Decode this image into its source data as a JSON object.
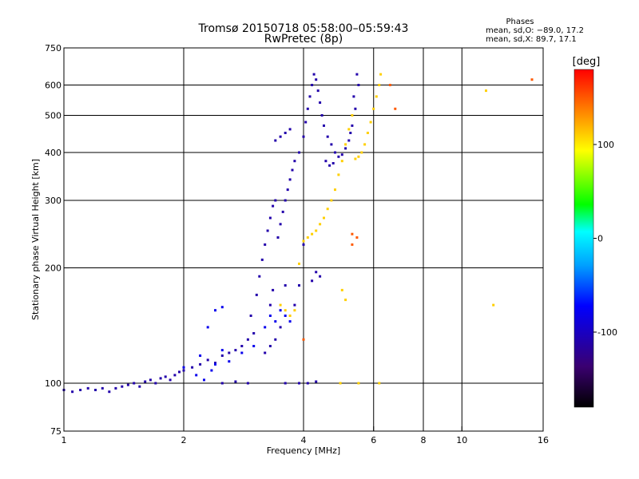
{
  "header": {
    "title": "Tromsø 20150718 05:58:00–05:59:43",
    "subtitle": "RwPretec (8p)"
  },
  "phases_box": {
    "heading": "Phases",
    "o_mode": "mean, sd,O: −89.0, 17.2",
    "x_mode": "mean, sd,X:  89.7, 17.1"
  },
  "colors": {
    "grid": "#000000",
    "colorbar_stops": [
      "#000000",
      "#3a0070",
      "#0000ff",
      "#00a0ff",
      "#00ffff",
      "#00ff00",
      "#ffff00",
      "#ff8000",
      "#ff0000"
    ]
  },
  "chart_data": {
    "type": "scatter",
    "title": "Tromsø 20150718 05:58:00–05:59:43",
    "subtitle": "RwPretec (8p)",
    "xlabel": "Frequency [MHz]",
    "ylabel": "Stationary phase Virtual Height [km]",
    "x_scale": "log",
    "y_scale": "log",
    "xlim": [
      1,
      16
    ],
    "ylim": [
      75,
      750
    ],
    "x_ticks": [
      1,
      2,
      4,
      6,
      8,
      10,
      16
    ],
    "x_tick_labels": [
      "1",
      "2",
      "4",
      "6",
      "8",
      "10",
      "16"
    ],
    "y_ticks": [
      75,
      100,
      200,
      300,
      400,
      500,
      600,
      750
    ],
    "y_tick_labels": [
      "75",
      "100",
      "200",
      "300",
      "400",
      "500",
      "600",
      "750"
    ],
    "grid": true,
    "colorbar": {
      "label": "[deg]",
      "range": [
        -180,
        180
      ],
      "ticks": [
        -100,
        0,
        100
      ],
      "tick_labels": [
        "-100",
        "0",
        "100"
      ]
    },
    "series": [
      {
        "color_value": -110,
        "points": [
          [
            1.0,
            96
          ],
          [
            1.05,
            95
          ],
          [
            1.1,
            96
          ],
          [
            1.15,
            97
          ],
          [
            1.2,
            96
          ],
          [
            1.25,
            97
          ],
          [
            1.3,
            95
          ],
          [
            1.35,
            97
          ],
          [
            1.4,
            98
          ],
          [
            1.45,
            99
          ],
          [
            1.5,
            100
          ],
          [
            1.55,
            98
          ],
          [
            1.6,
            101
          ],
          [
            1.65,
            102
          ],
          [
            1.7,
            100
          ],
          [
            1.75,
            103
          ],
          [
            1.8,
            104
          ],
          [
            1.85,
            102
          ],
          [
            1.9,
            105
          ],
          [
            1.95,
            107
          ],
          [
            2.0,
            108
          ],
          [
            2.1,
            110
          ],
          [
            2.2,
            112
          ],
          [
            2.3,
            115
          ],
          [
            2.4,
            113
          ],
          [
            2.5,
            118
          ],
          [
            2.6,
            120
          ],
          [
            2.7,
            122
          ],
          [
            2.8,
            125
          ],
          [
            2.9,
            130
          ],
          [
            3.0,
            135
          ],
          [
            2.95,
            150
          ],
          [
            3.05,
            170
          ],
          [
            3.1,
            190
          ],
          [
            3.15,
            210
          ],
          [
            3.2,
            230
          ],
          [
            3.25,
            250
          ],
          [
            3.3,
            270
          ],
          [
            3.35,
            290
          ],
          [
            3.4,
            300
          ],
          [
            3.45,
            240
          ],
          [
            3.5,
            260
          ],
          [
            3.55,
            280
          ],
          [
            3.6,
            300
          ],
          [
            3.65,
            320
          ],
          [
            3.7,
            340
          ],
          [
            3.75,
            360
          ],
          [
            3.8,
            380
          ],
          [
            3.9,
            400
          ],
          [
            4.0,
            440
          ],
          [
            4.05,
            480
          ],
          [
            4.1,
            520
          ],
          [
            4.15,
            560
          ],
          [
            4.2,
            600
          ],
          [
            4.25,
            640
          ],
          [
            4.3,
            620
          ],
          [
            4.35,
            580
          ],
          [
            4.4,
            540
          ],
          [
            4.45,
            500
          ],
          [
            4.5,
            470
          ],
          [
            4.6,
            440
          ],
          [
            4.7,
            420
          ],
          [
            4.8,
            400
          ],
          [
            4.9,
            390
          ],
          [
            5.0,
            395
          ],
          [
            5.1,
            410
          ],
          [
            5.2,
            430
          ],
          [
            5.3,
            470
          ],
          [
            5.4,
            520
          ],
          [
            5.5,
            600
          ],
          [
            5.45,
            640
          ],
          [
            5.35,
            560
          ],
          [
            5.25,
            450
          ],
          [
            4.55,
            380
          ],
          [
            4.65,
            370
          ],
          [
            4.75,
            375
          ],
          [
            3.2,
            120
          ],
          [
            3.3,
            125
          ],
          [
            3.4,
            130
          ],
          [
            3.5,
            140
          ],
          [
            3.3,
            160
          ],
          [
            3.35,
            175
          ],
          [
            3.6,
            180
          ],
          [
            4.2,
            185
          ],
          [
            4.4,
            190
          ],
          [
            4.3,
            195
          ],
          [
            2.5,
            100
          ],
          [
            2.7,
            101
          ],
          [
            2.9,
            100
          ],
          [
            3.6,
            100
          ],
          [
            3.9,
            100
          ],
          [
            4.1,
            100
          ],
          [
            4.3,
            101
          ],
          [
            3.8,
            160
          ],
          [
            3.9,
            180
          ],
          [
            4.0,
            230
          ],
          [
            3.4,
            430
          ],
          [
            3.5,
            440
          ],
          [
            3.6,
            450
          ],
          [
            3.7,
            460
          ]
        ]
      },
      {
        "color_value": -80,
        "points": [
          [
            2.0,
            110
          ],
          [
            2.2,
            118
          ],
          [
            2.4,
            112
          ],
          [
            2.5,
            122
          ],
          [
            2.6,
            114
          ],
          [
            2.8,
            120
          ],
          [
            3.0,
            125
          ],
          [
            2.3,
            140
          ],
          [
            2.4,
            155
          ],
          [
            2.5,
            158
          ],
          [
            3.3,
            150
          ],
          [
            3.4,
            145
          ],
          [
            3.5,
            155
          ],
          [
            3.2,
            140
          ],
          [
            3.6,
            150
          ],
          [
            3.7,
            145
          ],
          [
            2.15,
            105
          ],
          [
            2.35,
            108
          ],
          [
            2.25,
            102
          ]
        ]
      },
      {
        "color_value": 110,
        "points": [
          [
            3.7,
            150
          ],
          [
            3.8,
            155
          ],
          [
            3.9,
            205
          ],
          [
            4.0,
            235
          ],
          [
            4.1,
            240
          ],
          [
            4.2,
            245
          ],
          [
            4.3,
            250
          ],
          [
            4.4,
            260
          ],
          [
            4.5,
            270
          ],
          [
            4.6,
            285
          ],
          [
            4.7,
            300
          ],
          [
            4.8,
            320
          ],
          [
            4.9,
            350
          ],
          [
            5.0,
            380
          ],
          [
            5.1,
            420
          ],
          [
            5.2,
            460
          ],
          [
            5.3,
            500
          ],
          [
            5.6,
            400
          ],
          [
            5.7,
            420
          ],
          [
            5.8,
            450
          ],
          [
            5.9,
            480
          ],
          [
            6.0,
            520
          ],
          [
            6.1,
            560
          ],
          [
            6.2,
            600
          ],
          [
            6.25,
            640
          ],
          [
            5.5,
            390
          ],
          [
            5.4,
            385
          ],
          [
            4.95,
            100
          ],
          [
            5.5,
            100
          ],
          [
            6.2,
            100
          ],
          [
            5.0,
            175
          ],
          [
            5.1,
            165
          ],
          [
            3.6,
            155
          ],
          [
            3.5,
            160
          ],
          [
            11.5,
            580
          ],
          [
            12,
            160
          ]
        ]
      },
      {
        "color_value": 150,
        "points": [
          [
            5.3,
            245
          ],
          [
            5.45,
            240
          ],
          [
            5.3,
            230
          ],
          [
            6.6,
            600
          ],
          [
            6.8,
            520
          ],
          [
            4.0,
            130
          ],
          [
            15,
            620
          ]
        ]
      }
    ]
  }
}
